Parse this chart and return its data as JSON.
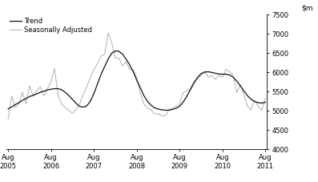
{
  "ylim": [
    4000,
    7500
  ],
  "yticks": [
    4000,
    4500,
    5000,
    5500,
    6000,
    6500,
    7000,
    7500
  ],
  "xtick_labels": [
    "Aug\n2005",
    "Aug\n2006",
    "Aug\n2007",
    "Aug\n2008",
    "Aug\n2009",
    "Aug\n2010",
    "Aug\n2011"
  ],
  "xtick_positions": [
    0,
    12,
    24,
    36,
    48,
    60,
    72
  ],
  "trend_color": "#111111",
  "seasonal_color": "#b0b0b0",
  "legend_entries": [
    "Trend",
    "Seasonally Adjusted"
  ],
  "background_color": "#ffffff",
  "trend_x": [
    0,
    1,
    2,
    3,
    4,
    5,
    6,
    7,
    8,
    9,
    10,
    11,
    12,
    13,
    14,
    15,
    16,
    17,
    18,
    19,
    20,
    21,
    22,
    23,
    24,
    25,
    26,
    27,
    28,
    29,
    30,
    31,
    32,
    33,
    34,
    35,
    36,
    37,
    38,
    39,
    40,
    41,
    42,
    43,
    44,
    45,
    46,
    47,
    48,
    49,
    50,
    51,
    52,
    53,
    54,
    55,
    56,
    57,
    58,
    59,
    60,
    61,
    62,
    63,
    64,
    65,
    66,
    67,
    68,
    69,
    70,
    71,
    72
  ],
  "trend_y": [
    5050,
    5100,
    5160,
    5210,
    5270,
    5320,
    5370,
    5400,
    5440,
    5480,
    5510,
    5540,
    5560,
    5575,
    5575,
    5545,
    5475,
    5395,
    5295,
    5195,
    5115,
    5095,
    5125,
    5245,
    5445,
    5695,
    5945,
    6145,
    6345,
    6495,
    6555,
    6545,
    6475,
    6345,
    6195,
    6015,
    5795,
    5595,
    5395,
    5245,
    5145,
    5075,
    5045,
    5025,
    5015,
    5015,
    5035,
    5065,
    5115,
    5225,
    5375,
    5545,
    5715,
    5865,
    5965,
    6005,
    6015,
    5995,
    5975,
    5955,
    5950,
    5950,
    5930,
    5870,
    5770,
    5650,
    5520,
    5390,
    5300,
    5240,
    5210,
    5200,
    5220
  ],
  "seasonal_x": [
    0,
    1,
    2,
    3,
    4,
    5,
    6,
    7,
    8,
    9,
    10,
    11,
    12,
    13,
    14,
    15,
    16,
    17,
    18,
    19,
    20,
    21,
    22,
    23,
    24,
    25,
    26,
    27,
    28,
    29,
    30,
    31,
    32,
    33,
    34,
    35,
    36,
    37,
    38,
    39,
    40,
    41,
    42,
    43,
    44,
    45,
    46,
    47,
    48,
    49,
    50,
    51,
    52,
    53,
    54,
    55,
    56,
    57,
    58,
    59,
    60,
    61,
    62,
    63,
    64,
    65,
    66,
    67,
    68,
    69,
    70,
    71,
    72
  ],
  "seasonal_y": [
    4780,
    5380,
    5080,
    5180,
    5480,
    5180,
    5650,
    5380,
    5520,
    5620,
    5380,
    5570,
    5750,
    6100,
    5380,
    5170,
    5080,
    5020,
    4930,
    5020,
    5170,
    5420,
    5620,
    5870,
    6070,
    6220,
    6420,
    6470,
    7020,
    6770,
    6370,
    6370,
    6170,
    6270,
    6070,
    6070,
    5870,
    5470,
    5170,
    5070,
    5020,
    4920,
    4920,
    4870,
    4870,
    5020,
    5070,
    5120,
    5170,
    5470,
    5520,
    5570,
    5770,
    5820,
    5920,
    6020,
    5870,
    5920,
    5820,
    5920,
    5870,
    6070,
    6020,
    5920,
    5470,
    5670,
    5420,
    5120,
    5020,
    5270,
    5120,
    5020,
    5320
  ]
}
